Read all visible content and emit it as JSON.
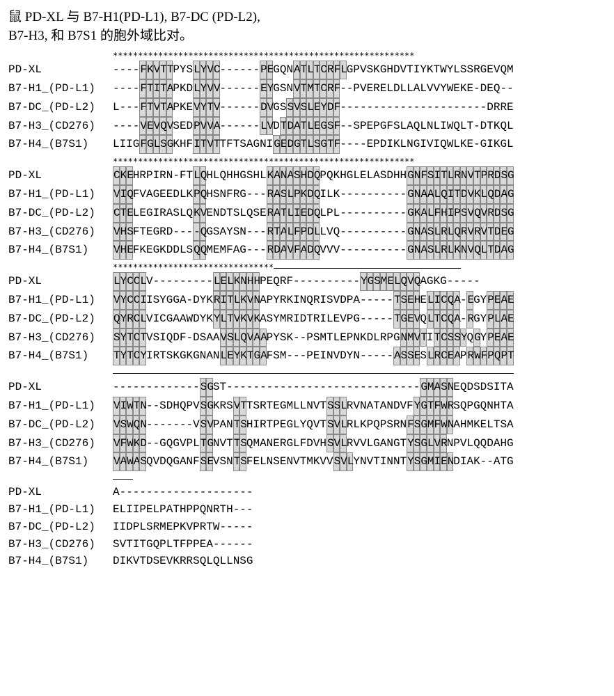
{
  "title_line1": "鼠 PD-XL 与 B7-H1(PD-L1), B7-DC (PD-L2),",
  "title_line2": "B7-H3, 和 B7S1 的胞外域比对。",
  "labels": {
    "pdxl": "PD-XL",
    "b7h1": "B7-H1_(PD-L1)",
    "b7dc": "B7-DC_(PD-L2)",
    "b7h3": "B7-H3_(CD276)",
    "b7h4": "B7-H4_(B7S1)"
  },
  "blocks": [
    {
      "ruler": {
        "type": "stars",
        "len": 60
      },
      "rows": [
        {
          "label": "pdxl",
          "seq": "----FKVTTPYSLYVC------PEGQNATLTCRFLGPVSKGHDVTIYKTWYLSSRGEVQM",
          "hl": [
            4,
            5,
            6,
            7,
            8,
            12,
            13,
            14,
            15,
            22,
            23,
            27,
            28,
            29,
            30,
            31,
            32,
            33,
            34
          ]
        },
        {
          "label": "b7h1",
          "seq": "----FTITAPKDLYVV------EYGSNVTMTCRF--PVERELDLLALVVYWEKE-DEQ--",
          "hl": [
            4,
            5,
            6,
            7,
            8,
            12,
            13,
            14,
            15,
            22,
            23,
            27,
            28,
            29,
            30,
            31,
            32,
            33
          ]
        },
        {
          "label": "b7dc",
          "seq": "L---FTVTAPKEVYTV------DVGSSVSLEYDF----------------------DRRE",
          "hl": [
            4,
            5,
            6,
            7,
            8,
            12,
            13,
            14,
            15,
            22,
            23,
            26,
            27,
            28,
            29,
            30,
            31,
            32,
            33
          ]
        },
        {
          "label": "b7h3",
          "seq": "----VEVQVSEDPVVA------LVDTDATLEGSF--SPEPGFSLAQLNLIWQLT-DTKQL",
          "hl": [
            4,
            5,
            6,
            7,
            8,
            12,
            13,
            14,
            15,
            22,
            23,
            25,
            26,
            27,
            28,
            29,
            30,
            31,
            32,
            33
          ]
        },
        {
          "label": "b7h4",
          "seq": "LIIGFGLSGKHFITVTTFTSAGNIGEDGTLSGTF----EPDIKLNGIVIQWLKE-GIKGL",
          "hl": [
            4,
            5,
            6,
            7,
            8,
            12,
            13,
            14,
            15,
            24,
            25,
            26,
            27,
            28,
            29,
            30,
            31,
            32,
            33
          ]
        }
      ]
    },
    {
      "ruler": {
        "type": "stars",
        "len": 60
      },
      "rows": [
        {
          "label": "pdxl",
          "seq": "CKEHRPIRN-FTLQHLQHHGSHLKANASHDQPQKHGLELASDHHGNFSITLRNVTPRDSG",
          "hl": [
            0,
            1,
            2,
            12,
            13,
            23,
            24,
            25,
            26,
            27,
            28,
            29,
            30,
            44,
            45,
            46,
            47,
            48,
            49,
            50,
            51,
            52,
            53,
            54,
            55,
            56,
            57,
            58,
            59
          ]
        },
        {
          "label": "b7h1",
          "seq": "VIQFVAGEEDLKPQHSNFRG---RASLPKDQILK----------GNAALQITDVKLQDAG",
          "hl": [
            0,
            1,
            2,
            12,
            13,
            23,
            24,
            25,
            26,
            27,
            28,
            29,
            30,
            44,
            45,
            46,
            47,
            48,
            49,
            50,
            51,
            52,
            53,
            54,
            55,
            56,
            57,
            58,
            59
          ]
        },
        {
          "label": "b7dc",
          "seq": "CTELEGIRASLQKVENDTSLQSERATLIEDQLPL----------GKALFHIPSVQVRDSG",
          "hl": [
            0,
            1,
            2,
            12,
            13,
            23,
            24,
            25,
            26,
            27,
            28,
            29,
            30,
            44,
            45,
            46,
            47,
            48,
            49,
            50,
            51,
            52,
            53,
            54,
            55,
            56,
            57,
            58,
            59
          ]
        },
        {
          "label": "b7h3",
          "seq": "VHSFTEGRD----QGSAYSN---RTALFPDLLVQ----------GNASLRLQRVRVTDEG",
          "hl": [
            0,
            1,
            2,
            12,
            13,
            23,
            24,
            25,
            26,
            27,
            28,
            29,
            30,
            44,
            45,
            46,
            47,
            48,
            49,
            50,
            51,
            52,
            53,
            54,
            55,
            56,
            57,
            58,
            59
          ]
        },
        {
          "label": "b7h4",
          "seq": "VHEFKEGKDDLSQQMEMFAG---RDAVFADQVVV----------GNASLRLKNVQLTDAG",
          "hl": [
            0,
            1,
            2,
            12,
            13,
            23,
            24,
            25,
            26,
            27,
            28,
            29,
            30,
            44,
            45,
            46,
            47,
            48,
            49,
            50,
            51,
            52,
            53,
            54,
            55,
            56,
            57,
            58,
            59
          ]
        }
      ]
    },
    {
      "ruler": {
        "type": "mixed",
        "stars_to": 32,
        "line_from": 33
      },
      "rows": [
        {
          "label": "pdxl",
          "seq": "LYCCLV---------LELKNHHPEQRF----------YGSMELQVQAGKG-----",
          "hl": [
            0,
            1,
            2,
            3,
            4,
            15,
            16,
            17,
            18,
            19,
            20,
            21,
            37,
            38,
            39,
            40,
            41,
            42,
            43,
            44,
            45
          ]
        },
        {
          "label": "b7h1",
          "seq": "VYCCIISYGGA-DYKRITLKVNAPYRKINQRISVDPA-----TSEHELICQA-EGYPEAE",
          "hl": [
            0,
            1,
            2,
            3,
            4,
            15,
            16,
            17,
            18,
            19,
            20,
            21,
            42,
            43,
            44,
            45,
            47,
            48,
            49,
            50,
            51,
            53,
            56,
            57,
            58,
            59
          ]
        },
        {
          "label": "b7dc",
          "seq": "QYRCLVICGAAWDYKYLTVKVKASYMRIDTRILEVPG-----TGEVQLTCQA-RGYPLAE",
          "hl": [
            0,
            1,
            2,
            3,
            4,
            15,
            16,
            17,
            18,
            19,
            20,
            21,
            42,
            43,
            44,
            45,
            47,
            48,
            49,
            50,
            51,
            53,
            56,
            57,
            58,
            59
          ]
        },
        {
          "label": "b7h3",
          "seq": "SYTCTVSIQDF-DSAAVSLQVAAPYSK--PSMTLEPNKDLRPGNMVTITCSSYQGYPEAE",
          "hl": [
            0,
            1,
            2,
            3,
            4,
            16,
            17,
            18,
            19,
            20,
            21,
            22,
            43,
            44,
            45,
            46,
            48,
            49,
            50,
            51,
            52,
            54,
            56,
            57,
            58,
            59
          ]
        },
        {
          "label": "b7h4",
          "seq": "TYTCYIRTSKGKGNANLEYKTGAFSM---PEINVDYN-----ASSESLRCEAPRWFPQPT",
          "hl": [
            0,
            1,
            2,
            3,
            4,
            16,
            17,
            18,
            19,
            20,
            21,
            22,
            42,
            43,
            44,
            45,
            47,
            48,
            49,
            50,
            51,
            53,
            54,
            55,
            56,
            57,
            58,
            59
          ]
        }
      ]
    },
    {
      "ruler": {
        "type": "line",
        "len": 60
      },
      "rows": [
        {
          "label": "pdxl",
          "seq": "-------------SGST-----------------------------GMASNEQDSDSITA",
          "hl": [
            13,
            14,
            46,
            47,
            48,
            49,
            50
          ]
        },
        {
          "label": "b7h1",
          "seq": "VIWTN--SDHQPVSGKRSVTTSRTEGMLLNVTSSLRVNATANDVFYGTFWRSQPGQNHTA",
          "hl": [
            0,
            1,
            2,
            3,
            4,
            13,
            14,
            18,
            19,
            32,
            33,
            34,
            45,
            46,
            47,
            48,
            49,
            50
          ]
        },
        {
          "label": "b7dc",
          "seq": "VSWQN-------VSVPANTSHIRTPEGLYQVTSVLRLKPQPSRNFSGMFWNAHMKELTSA",
          "hl": [
            0,
            1,
            2,
            3,
            4,
            13,
            14,
            18,
            19,
            32,
            33,
            34,
            44,
            45,
            46,
            47,
            48,
            49,
            50
          ]
        },
        {
          "label": "b7h3",
          "seq": "VFWKD--GQGVPLTGNVTTSQMANERGLFDVHSVLRVVLGANGTYSGLVRNPVLQQDAHG",
          "hl": [
            0,
            1,
            2,
            3,
            4,
            13,
            14,
            18,
            19,
            32,
            33,
            34,
            44,
            45,
            46,
            47,
            48,
            49
          ]
        },
        {
          "label": "b7h4",
          "seq": "VAWASQVDQGANFSEVSNTSFELNSENVTMKVVSVLYNVTINNTYSGMIENDIAK--ATG",
          "hl": [
            0,
            1,
            2,
            3,
            4,
            13,
            14,
            18,
            19,
            33,
            34,
            35,
            44,
            45,
            46,
            47,
            48,
            49,
            50
          ]
        }
      ]
    },
    {
      "ruler": {
        "type": "line",
        "len": 3
      },
      "rows": [
        {
          "label": "pdxl",
          "seq": "A--------------------",
          "hl": []
        },
        {
          "label": "b7h1",
          "seq": "ELIIPELPATHPPQNRTH---",
          "hl": []
        },
        {
          "label": "b7dc",
          "seq": "IIDPLSRMEPKVPRTW-----",
          "hl": []
        },
        {
          "label": "b7h3",
          "seq": "SVTITGQPLTFPPEA------",
          "hl": []
        },
        {
          "label": "b7h4",
          "seq": "DIKVTDSEVKRRSQLQLLNSG",
          "hl": []
        }
      ]
    }
  ]
}
